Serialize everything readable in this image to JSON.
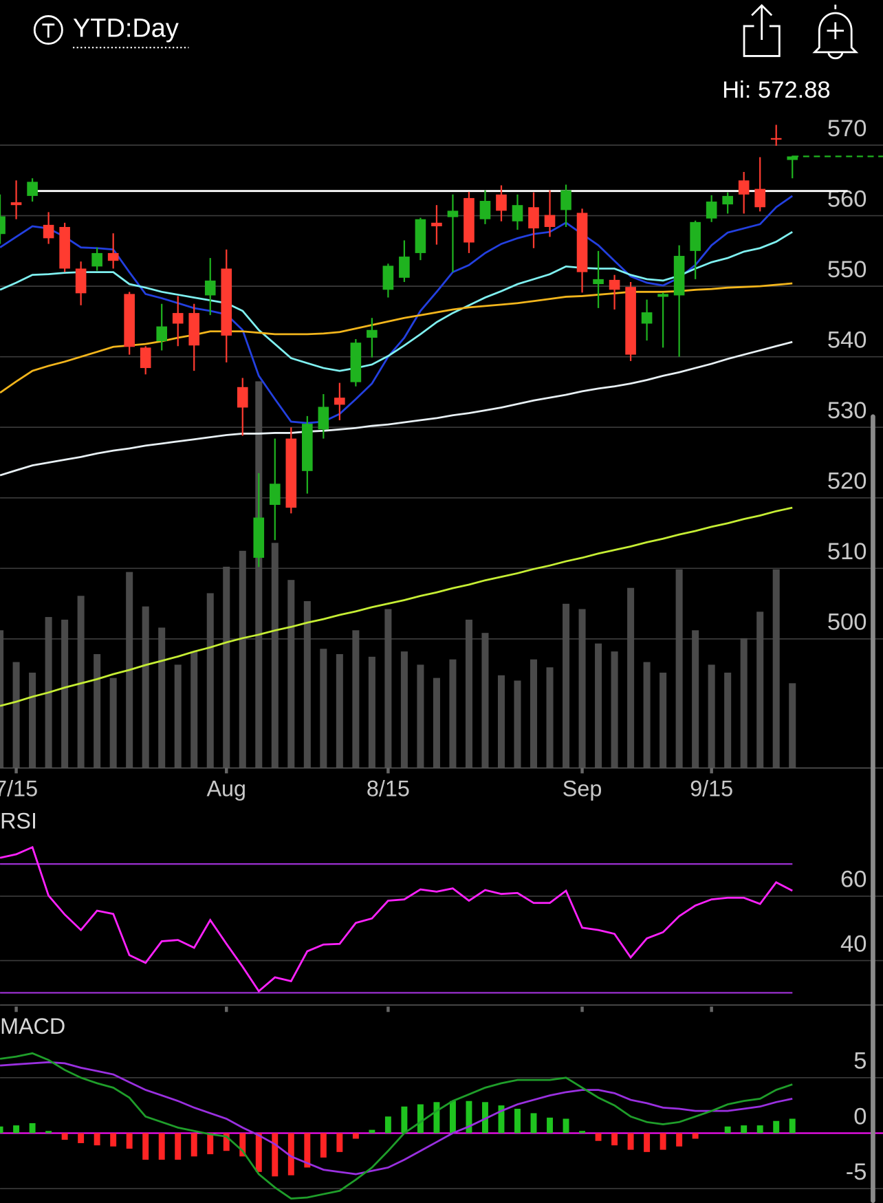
{
  "chart_data": [
    {
      "type": "candlestick",
      "title": "YTD:Day",
      "high_label": "Hi: 572.88",
      "up_color": "#1fb31f",
      "down_color": "#ff3b30",
      "volume_color": "#4a4a4a",
      "categories": [
        null,
        "7/15",
        null,
        null,
        null,
        null,
        null,
        null,
        null,
        null,
        null,
        null,
        null,
        null,
        "Aug",
        null,
        null,
        null,
        null,
        null,
        null,
        null,
        null,
        null,
        "8/15",
        null,
        null,
        null,
        null,
        null,
        null,
        null,
        null,
        null,
        null,
        null,
        "Sep",
        null,
        null,
        null,
        null,
        null,
        null,
        null,
        "9/15",
        null,
        null,
        null,
        null,
        null
      ],
      "open": [
        557.4,
        561.9,
        562.8,
        558.7,
        558.4,
        552.5,
        552.8,
        554.7,
        548.9,
        541.3,
        542.2,
        546.2,
        546.2,
        548.7,
        552.5,
        535.7,
        511.5,
        519.0,
        528.4,
        523.8,
        529.7,
        534.2,
        536.4,
        542.7,
        549.5,
        551.2,
        554.7,
        559.0,
        559.8,
        562.5,
        559.5,
        563.0,
        559.2,
        561.2,
        560.1,
        560.8,
        560.4,
        550.3,
        550.9,
        549.9,
        544.7,
        548.5,
        548.7,
        555.0,
        559.6,
        561.6,
        565.0,
        563.8,
        571.0,
        567.9
      ],
      "high": [
        563.0,
        565.0,
        565.3,
        560.5,
        559.0,
        553.5,
        555.5,
        557.5,
        549.2,
        541.5,
        547.5,
        548.6,
        547.5,
        554.0,
        555.2,
        537.0,
        523.5,
        528.4,
        530.0,
        531.6,
        534.7,
        536.3,
        542.5,
        545.5,
        553.2,
        556.5,
        559.7,
        561.5,
        563.0,
        563.4,
        563.6,
        564.3,
        563.0,
        563.3,
        563.6,
        564.4,
        561.0,
        555.0,
        551.6,
        550.6,
        548.1,
        549.1,
        555.8,
        559.3,
        562.9,
        563.3,
        566.2,
        568.3,
        572.88,
        568.5
      ],
      "low": [
        556.0,
        559.5,
        562.0,
        556.0,
        552.0,
        547.3,
        552.2,
        552.5,
        540.3,
        537.5,
        540.9,
        541.5,
        538.0,
        545.9,
        539.2,
        528.8,
        510.2,
        514.0,
        517.8,
        520.6,
        528.4,
        531.0,
        535.8,
        539.9,
        548.4,
        550.6,
        553.7,
        555.9,
        552.0,
        554.7,
        558.8,
        559.2,
        558.0,
        555.4,
        557.0,
        558.4,
        549.1,
        546.9,
        546.7,
        539.4,
        542.3,
        541.3,
        540.0,
        551.0,
        559.1,
        560.3,
        560.3,
        560.6,
        569.9,
        565.3
      ],
      "close": [
        559.9,
        561.5,
        564.8,
        556.8,
        552.5,
        549.0,
        554.7,
        553.6,
        541.4,
        538.4,
        544.3,
        544.7,
        541.6,
        550.8,
        543.0,
        532.8,
        517.2,
        522.0,
        518.6,
        530.5,
        532.9,
        533.2,
        542.0,
        543.8,
        552.9,
        554.2,
        559.5,
        558.5,
        560.7,
        556.2,
        562.1,
        560.7,
        561.5,
        558.2,
        558.4,
        563.6,
        552.0,
        551.0,
        549.5,
        540.3,
        546.3,
        548.9,
        554.3,
        559.1,
        562.0,
        562.8,
        563.0,
        561.2,
        570.8,
        568.4
      ],
      "volume": [
        52,
        40,
        36,
        57,
        56,
        65,
        43,
        34,
        74,
        61,
        53,
        39,
        44,
        66,
        76,
        82,
        146,
        85,
        71,
        63,
        45,
        43,
        52,
        42,
        60,
        44,
        39,
        34,
        41,
        56,
        51,
        35,
        33,
        41,
        38,
        62,
        60,
        47,
        44,
        68,
        40,
        36,
        75,
        52,
        39,
        36,
        49,
        59,
        75,
        32
      ],
      "series": [
        {
          "color": "#2340e0",
          "values": [
            555.5,
            557,
            558.5,
            558.2,
            557,
            555.5,
            555.4,
            555.2,
            552,
            548.9,
            548.3,
            547.6,
            546.9,
            546.5,
            546,
            543.8,
            537.3,
            534,
            530.8,
            530.6,
            530.8,
            531.9,
            534,
            536.2,
            540,
            542.7,
            546.5,
            549.2,
            552,
            553,
            554.7,
            556,
            556.8,
            557.4,
            557.7,
            559,
            557.4,
            555.8,
            553.6,
            551.4,
            550.5,
            550.1,
            551.2,
            553,
            555.8,
            557.6,
            558.2,
            558.8,
            561.2,
            562.8
          ]
        },
        {
          "color": "#7ff0f0",
          "values": [
            549.5,
            550.5,
            551.6,
            551.7,
            551.9,
            552,
            552,
            552,
            550.3,
            549.8,
            549.2,
            548.8,
            548.4,
            548,
            547.6,
            546.5,
            543.8,
            541.8,
            539.8,
            539.1,
            538.4,
            538,
            538.4,
            538.9,
            540.1,
            541.6,
            543.2,
            544.9,
            546.2,
            547.3,
            548.4,
            549.3,
            550.3,
            551,
            551.7,
            552.8,
            552.6,
            552.5,
            552.5,
            551.6,
            551,
            550.8,
            551.5,
            552.5,
            553.4,
            554,
            554.9,
            555.4,
            556.3,
            557.7
          ]
        },
        {
          "color": "#f2b51c",
          "values": [
            534.9,
            536.5,
            538,
            538.7,
            539.3,
            540,
            540.7,
            541.4,
            541.6,
            541.8,
            542.2,
            542.7,
            543.1,
            543.6,
            543.6,
            543.6,
            543.4,
            543.2,
            543.2,
            543.2,
            543.3,
            543.5,
            544,
            544.5,
            545,
            545.5,
            545.9,
            546.3,
            546.7,
            547,
            547.2,
            547.4,
            547.6,
            547.9,
            548.2,
            548.5,
            548.6,
            548.8,
            549,
            549.2,
            549.2,
            549.2,
            549.3,
            549.5,
            549.6,
            549.8,
            549.9,
            550,
            550.2,
            550.4
          ]
        },
        {
          "color": "#e8f0f4",
          "values": [
            523.2,
            523.9,
            524.6,
            525,
            525.4,
            525.8,
            526.3,
            526.7,
            527,
            527.4,
            527.7,
            528,
            528.3,
            528.6,
            528.9,
            529.1,
            529.1,
            529.2,
            529.2,
            529.4,
            529.5,
            529.7,
            529.9,
            530.2,
            530.4,
            530.7,
            531,
            531.3,
            531.7,
            532,
            532.4,
            532.8,
            533.3,
            533.8,
            534.2,
            534.6,
            535.1,
            535.5,
            535.8,
            536.2,
            536.7,
            537.3,
            537.8,
            538.4,
            539,
            539.7,
            540.3,
            540.9,
            541.5,
            542.1
          ]
        },
        {
          "color": "#c6ee34",
          "values": [
            490.5,
            491.1,
            491.8,
            492.4,
            493.1,
            493.7,
            494.3,
            495,
            495.6,
            496.3,
            496.9,
            497.5,
            498.2,
            498.8,
            499.5,
            500.1,
            500.6,
            501.2,
            501.7,
            502.3,
            502.8,
            503.4,
            503.9,
            504.5,
            505,
            505.5,
            506.1,
            506.6,
            507.2,
            507.7,
            508.3,
            508.8,
            509.3,
            509.9,
            510.4,
            511,
            511.5,
            512.1,
            512.6,
            513.1,
            513.7,
            514.2,
            514.8,
            515.3,
            515.9,
            516.4,
            517,
            517.5,
            518.1,
            518.6
          ]
        }
      ],
      "horizontal_line": 563.5,
      "ylim": [
        481.7,
        579.7
      ],
      "yticks": [
        500,
        510,
        520,
        530,
        540,
        550,
        560,
        570
      ],
      "grid": true
    },
    {
      "type": "line",
      "title": "RSI",
      "color": "#ff22ff",
      "band_color": "#9b2fd0",
      "values": [
        71.9,
        73,
        75.2,
        60.2,
        54.3,
        49.5,
        55.5,
        54.5,
        41.7,
        39.3,
        46,
        46.4,
        44,
        52.6,
        45.2,
        38.1,
        30.5,
        34.8,
        33.6,
        42.9,
        45,
        45.2,
        51.7,
        53.1,
        58.6,
        59,
        62.1,
        61.4,
        62.4,
        58.6,
        61.9,
        60.7,
        61,
        57.9,
        57.9,
        61.7,
        50.2,
        49.5,
        48.3,
        41,
        46.9,
        48.8,
        53.8,
        57.1,
        59,
        59.5,
        59.5,
        57.6,
        64.3,
        61.7
      ],
      "levels": [
        70,
        30
      ],
      "ylim": [
        26.2,
        78.6
      ],
      "yticks": [
        60,
        40
      ],
      "grid": true
    },
    {
      "type": "macd",
      "title": "MACD",
      "zero_color": "#ff10ff",
      "macd": {
        "color": "#1f9e2a",
        "values": [
          6.7,
          6.9,
          7.2,
          6.6,
          5.7,
          5,
          4.5,
          4.1,
          3.2,
          1.5,
          1,
          0.5,
          0.2,
          -0.1,
          -0.3,
          -1.6,
          -3.7,
          -4.9,
          -5.9,
          -5.8,
          -5.5,
          -5.2,
          -4.2,
          -3.1,
          -1.6,
          0,
          1,
          2,
          2.9,
          3.5,
          4.1,
          4.5,
          4.8,
          4.8,
          4.8,
          5,
          4.1,
          3.2,
          2.5,
          1.5,
          1,
          0.8,
          1,
          1.5,
          2,
          2.6,
          2.9,
          3.1,
          3.9,
          4.4
        ]
      },
      "signal": {
        "color": "#9a30e0",
        "values": [
          6.1,
          6.2,
          6.3,
          6.4,
          6.3,
          5.9,
          5.6,
          5.3,
          4.6,
          3.9,
          3.4,
          2.9,
          2.3,
          1.8,
          1.3,
          0.5,
          -0.2,
          -1,
          -2.1,
          -2.7,
          -3.3,
          -3.5,
          -3.7,
          -3.4,
          -3.1,
          -2.4,
          -1.6,
          -0.8,
          0,
          0.6,
          1.3,
          2,
          2.6,
          3,
          3.4,
          3.7,
          3.9,
          3.9,
          3.6,
          3,
          2.7,
          2.3,
          2.2,
          2,
          2,
          2,
          2.2,
          2.4,
          2.8,
          3.1
        ]
      },
      "histogram": {
        "up_color": "#1fc41f",
        "down_color": "#ff2424",
        "values": [
          0.6,
          0.7,
          0.9,
          0.2,
          -0.6,
          -0.9,
          -1.1,
          -1.2,
          -1.4,
          -2.4,
          -2.4,
          -2.4,
          -2.1,
          -1.9,
          -1.6,
          -2.1,
          -3.5,
          -3.9,
          -3.8,
          -3.1,
          -2.2,
          -1.7,
          -0.5,
          0.3,
          1.5,
          2.4,
          2.6,
          2.8,
          2.9,
          2.9,
          2.8,
          2.5,
          2.2,
          1.8,
          1.4,
          1.3,
          0.2,
          -0.7,
          -1.1,
          -1.5,
          -1.7,
          -1.5,
          -1.2,
          -0.5,
          0,
          0.6,
          0.7,
          0.7,
          1.1,
          1.3
        ]
      },
      "ylim": [
        -6.3,
        7.4
      ],
      "yticks": [
        5,
        0,
        -5
      ],
      "grid": true
    }
  ]
}
